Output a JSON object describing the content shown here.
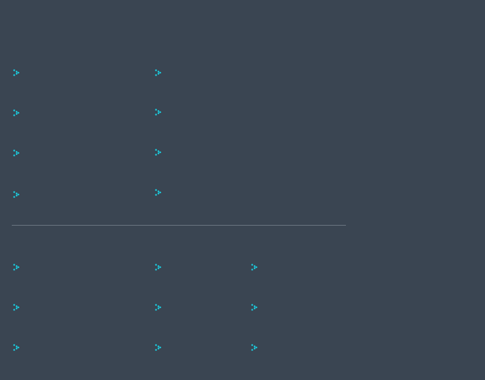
{
  "theme": {
    "background": "#3a4552",
    "accent": "#19d3e6",
    "divider": "#6b7682"
  },
  "top_grid": {
    "icon": "dots-chevron-icon",
    "rows": 4,
    "columns": 2
  },
  "bottom_grid": {
    "icon": "dots-chevron-icon",
    "rows": 3,
    "columns": 3
  }
}
